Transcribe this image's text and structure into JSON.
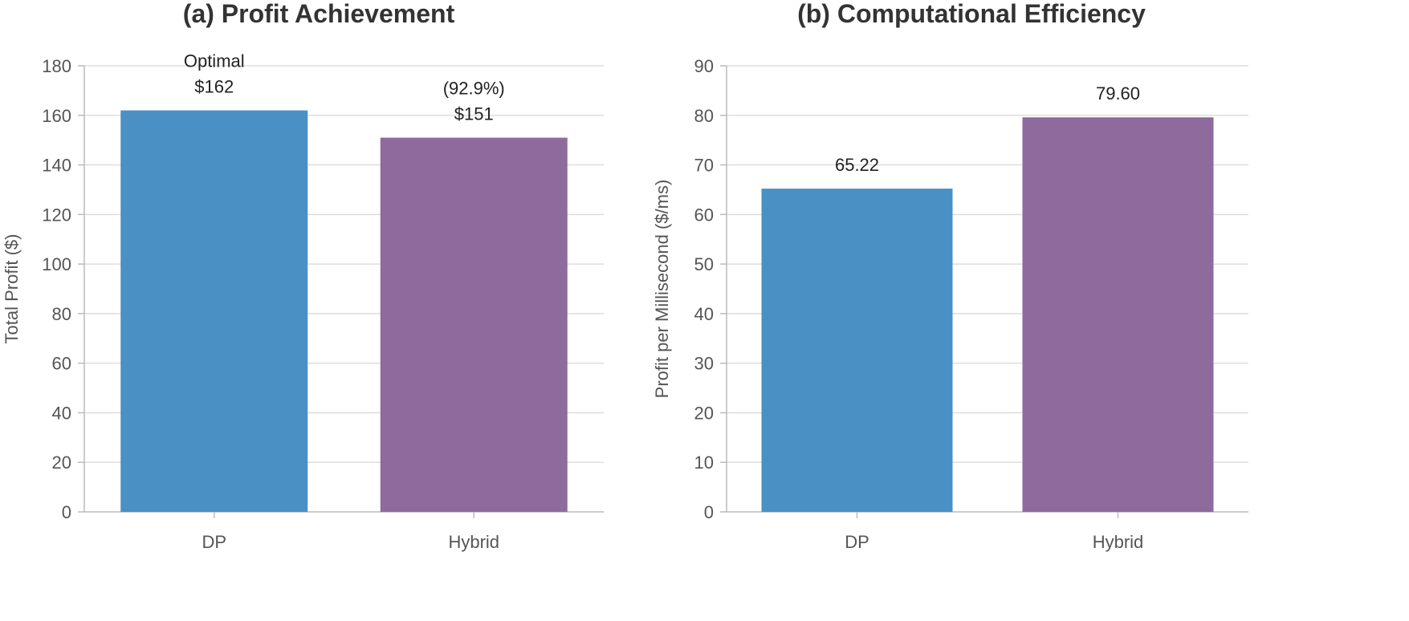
{
  "colors": {
    "dp": "#4a90c4",
    "hybrid": "#8e6a9d"
  },
  "chart_data": [
    {
      "type": "bar",
      "title": "(a) Profit Achievement",
      "xlabel": "",
      "ylabel": "Total Profit ($)",
      "categories": [
        "DP",
        "Hybrid"
      ],
      "values": [
        162,
        151
      ],
      "value_labels": [
        "$162",
        "$151"
      ],
      "annotations": [
        "Optimal",
        "(92.9%)"
      ],
      "ylim": [
        0,
        180
      ],
      "yticks": [
        0,
        20,
        40,
        60,
        80,
        100,
        120,
        140,
        160,
        180
      ],
      "grid": true,
      "legend": "none"
    },
    {
      "type": "bar",
      "title": "(b) Computational Efficiency",
      "xlabel": "",
      "ylabel": "Profit per Millisecond ($/ms)",
      "categories": [
        "DP",
        "Hybrid"
      ],
      "values": [
        65.22,
        79.6
      ],
      "value_labels": [
        "65.22",
        "79.60"
      ],
      "annotations": [
        "",
        ""
      ],
      "ylim": [
        0,
        90
      ],
      "yticks": [
        0,
        10,
        20,
        30,
        40,
        50,
        60,
        70,
        80,
        90
      ],
      "grid": true,
      "legend": "none"
    }
  ]
}
